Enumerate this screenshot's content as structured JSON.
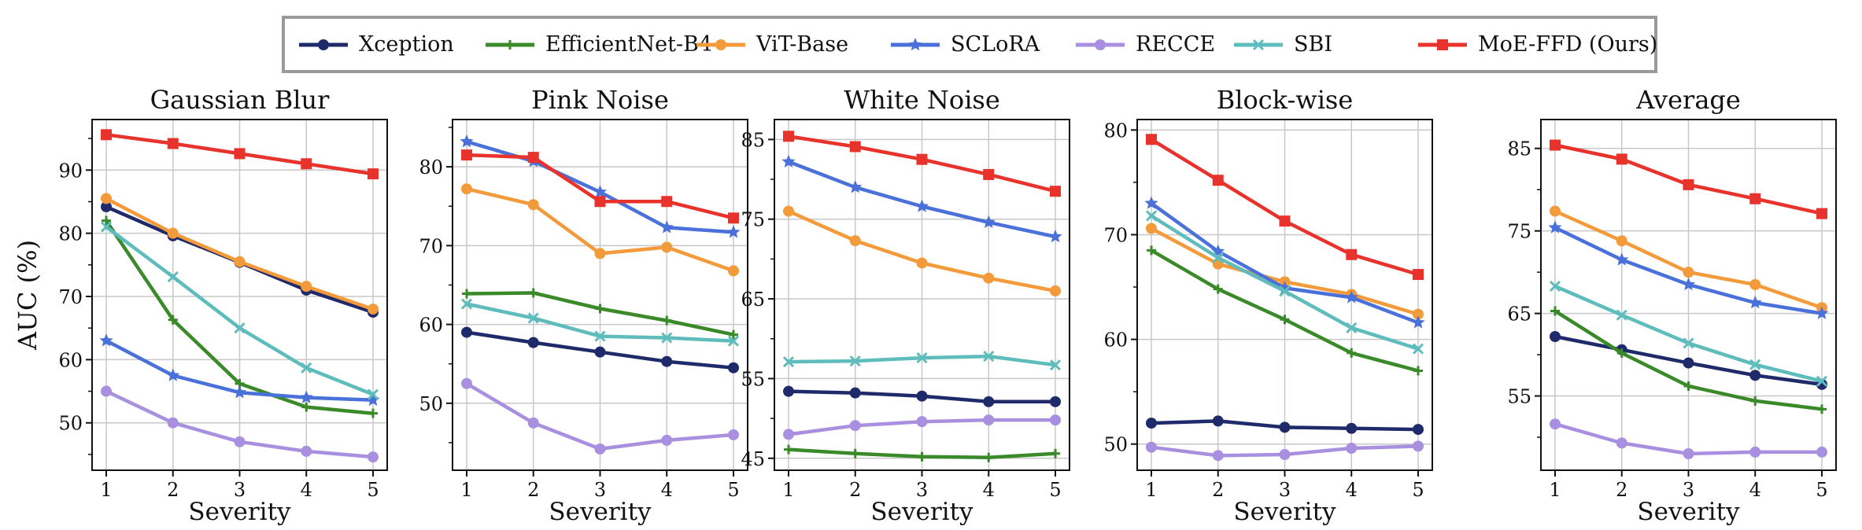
{
  "chart_data": {
    "type": "line",
    "ylabel": "AUC (%)",
    "xlabel": "Severity",
    "x": [
      1,
      2,
      3,
      4,
      5
    ],
    "legend": [
      {
        "name": "Xception",
        "color": "#1f2a6b",
        "marker": "circle"
      },
      {
        "name": "EfficientNet-B4",
        "color": "#3b8a2a",
        "marker": "plus"
      },
      {
        "name": "ViT-Base",
        "color": "#f39a3b",
        "marker": "circle"
      },
      {
        "name": "SCLoRA",
        "color": "#4a70d9",
        "marker": "star"
      },
      {
        "name": "RECCE",
        "color": "#a98fe0",
        "marker": "circle"
      },
      {
        "name": "SBI",
        "color": "#5fbcbc",
        "marker": "x"
      },
      {
        "name": "MoE-FFD (Ours)",
        "color": "#e8322c",
        "marker": "square"
      }
    ],
    "legend_position": "top-center",
    "panels": [
      {
        "title": "Gaussian Blur",
        "ylim": [
          42.5,
          98
        ],
        "yticks": [
          50,
          60,
          70,
          80,
          90
        ],
        "series": [
          {
            "name": "Xception",
            "values": [
              84.2,
              79.6,
              75.4,
              71.0,
              67.5
            ]
          },
          {
            "name": "EfficientNet-B4",
            "values": [
              82.0,
              66.3,
              56.2,
              52.5,
              51.5
            ]
          },
          {
            "name": "ViT-Base",
            "values": [
              85.5,
              80.0,
              75.5,
              71.6,
              68.0
            ]
          },
          {
            "name": "SCLoRA",
            "values": [
              63.0,
              57.5,
              54.8,
              54.0,
              53.6
            ]
          },
          {
            "name": "RECCE",
            "values": [
              55.0,
              50.0,
              47.0,
              45.5,
              44.6
            ]
          },
          {
            "name": "SBI",
            "values": [
              81.0,
              73.1,
              65.0,
              58.7,
              54.5
            ]
          },
          {
            "name": "MoE-FFD (Ours)",
            "values": [
              95.6,
              94.2,
              92.6,
              91.0,
              89.4
            ]
          }
        ]
      },
      {
        "title": "Pink Noise",
        "ylim": [
          41.5,
          86
        ],
        "yticks": [
          50,
          60,
          70,
          80
        ],
        "series": [
          {
            "name": "Xception",
            "values": [
              59.0,
              57.7,
              56.5,
              55.3,
              54.5
            ]
          },
          {
            "name": "EfficientNet-B4",
            "values": [
              63.9,
              64.0,
              62.0,
              60.5,
              58.7
            ]
          },
          {
            "name": "ViT-Base",
            "values": [
              77.2,
              75.2,
              69.0,
              69.8,
              66.8
            ]
          },
          {
            "name": "SCLoRA",
            "values": [
              83.2,
              80.7,
              76.8,
              72.3,
              71.7
            ]
          },
          {
            "name": "RECCE",
            "values": [
              52.5,
              47.5,
              44.2,
              45.3,
              46.0
            ]
          },
          {
            "name": "SBI",
            "values": [
              62.6,
              60.8,
              58.5,
              58.3,
              57.9
            ]
          },
          {
            "name": "MoE-FFD (Ours)",
            "values": [
              81.5,
              81.2,
              75.6,
              75.6,
              73.5
            ]
          }
        ]
      },
      {
        "title": "White Noise",
        "ylim": [
          43.5,
          87.5
        ],
        "yticks": [
          45,
          55,
          65,
          75,
          85
        ],
        "series": [
          {
            "name": "Xception",
            "values": [
              53.4,
              53.2,
              52.8,
              52.1,
              52.1
            ]
          },
          {
            "name": "EfficientNet-B4",
            "values": [
              46.1,
              45.6,
              45.2,
              45.1,
              45.6
            ]
          },
          {
            "name": "ViT-Base",
            "values": [
              76.0,
              72.3,
              69.5,
              67.6,
              66.0
            ]
          },
          {
            "name": "SCLoRA",
            "values": [
              82.2,
              79.0,
              76.6,
              74.6,
              72.8
            ]
          },
          {
            "name": "RECCE",
            "values": [
              48.0,
              49.1,
              49.6,
              49.8,
              49.8
            ]
          },
          {
            "name": "SBI",
            "values": [
              57.1,
              57.2,
              57.6,
              57.8,
              56.7
            ]
          },
          {
            "name": "MoE-FFD (Ours)",
            "values": [
              85.4,
              84.1,
              82.5,
              80.6,
              78.5
            ]
          }
        ]
      },
      {
        "title": "Block-wise",
        "ylim": [
          47.5,
          81
        ],
        "yticks": [
          50,
          60,
          70,
          80
        ],
        "series": [
          {
            "name": "Xception",
            "values": [
              52.0,
              52.2,
              51.6,
              51.5,
              51.4
            ]
          },
          {
            "name": "EfficientNet-B4",
            "values": [
              68.5,
              64.8,
              61.9,
              58.7,
              57.0
            ]
          },
          {
            "name": "ViT-Base",
            "values": [
              70.6,
              67.2,
              65.5,
              64.3,
              62.4
            ]
          },
          {
            "name": "SCLoRA",
            "values": [
              73.0,
              68.4,
              64.9,
              64.0,
              61.6
            ]
          },
          {
            "name": "RECCE",
            "values": [
              49.7,
              48.9,
              49.0,
              49.6,
              49.8
            ]
          },
          {
            "name": "SBI",
            "values": [
              71.8,
              67.8,
              64.6,
              61.1,
              59.1
            ]
          },
          {
            "name": "MoE-FFD (Ours)",
            "values": [
              79.1,
              75.2,
              71.3,
              68.1,
              66.2
            ]
          }
        ]
      },
      {
        "title": "Average",
        "ylim": [
          46,
          88.5
        ],
        "yticks": [
          55,
          65,
          75,
          85
        ],
        "series": [
          {
            "name": "Xception",
            "values": [
              62.2,
              60.6,
              59.0,
              57.5,
              56.4
            ]
          },
          {
            "name": "EfficientNet-B4",
            "values": [
              65.3,
              60.2,
              56.2,
              54.4,
              53.4
            ]
          },
          {
            "name": "ViT-Base",
            "values": [
              77.4,
              73.8,
              70.0,
              68.5,
              65.7
            ]
          },
          {
            "name": "SCLoRA",
            "values": [
              75.4,
              71.5,
              68.5,
              66.3,
              65.0
            ]
          },
          {
            "name": "RECCE",
            "values": [
              51.6,
              49.3,
              48.0,
              48.2,
              48.2
            ]
          },
          {
            "name": "SBI",
            "values": [
              68.3,
              64.8,
              61.4,
              58.8,
              56.8
            ]
          },
          {
            "name": "MoE-FFD (Ours)",
            "values": [
              85.4,
              83.7,
              80.6,
              78.9,
              77.1
            ]
          }
        ]
      }
    ]
  }
}
